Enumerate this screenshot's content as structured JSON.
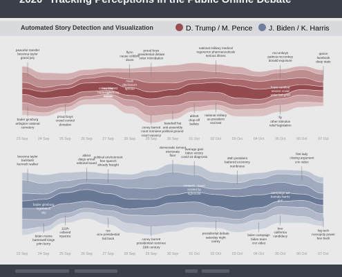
{
  "header": {
    "year": "2020",
    "title": "Tracking Perceptions in the Public Online Debate",
    "subtitle": "Automated Story Detection and Visualization"
  },
  "colors": {
    "header_bg": "#3a3f49",
    "subbar_bg": "#d9dadd",
    "trump": "#9b4f53",
    "biden": "#6f7e9c"
  },
  "chart_data": [
    {
      "type": "area",
      "name": "Trump / Pence stream",
      "legend": "D. Trump / M. Pence",
      "color": "#9b4f53",
      "x": [
        "23 Sep",
        "24 Sep",
        "25 Sep",
        "26 Sep",
        "27 Sep",
        "28 Sep",
        "29 Sep",
        "30 Sep",
        "01 Oct",
        "02 Oct",
        "03 Oct",
        "04 Oct",
        "05 Oct",
        "06 Oct",
        "07 Oct"
      ],
      "total": [
        3.8,
        3.4,
        3.0,
        2.8,
        2.9,
        3.6,
        4.4,
        4.2,
        3.8,
        3.6,
        4.0,
        3.6,
        3.4,
        3.2,
        2.8
      ],
      "annotations": [
        {
          "date": "23 Sep",
          "pos": "top",
          "lines": [
            "peaceful transfer",
            "breonna taylor",
            "grand jury"
          ]
        },
        {
          "date": "23 Sep",
          "pos": "bottom",
          "lines": [
            "bader ginsburg",
            "arlington national",
            "cemetery"
          ]
        },
        {
          "date": "25 Sep",
          "pos": "bottom",
          "lines": [
            "proud boys",
            "crowd control",
            "donation"
          ]
        },
        {
          "date": "27 Sep",
          "pos": "inner",
          "lines": [
            "coney barrett",
            "bader ginsburg",
            "statue"
          ]
        },
        {
          "date": "27 Sep",
          "pos": "inner",
          "lines": [
            "tuesday",
            "night",
            "debate"
          ]
        },
        {
          "date": "28 Sep",
          "pos": "top",
          "lines": [
            "flynn",
            "cause célèbre",
            "doors"
          ]
        },
        {
          "date": "28 Sep",
          "pos": "inner",
          "lines": [
            "mask",
            "disclosure",
            "spread"
          ]
        },
        {
          "date": "29 Sep",
          "pos": "bottom",
          "lines": [
            "coney barrett",
            "court nominee",
            "court vacancy"
          ]
        },
        {
          "date": "29 Sep",
          "pos": "top",
          "lines": [
            "proud boys",
            "presidential debate",
            "voter intimidation"
          ]
        },
        {
          "date": "30 Sep",
          "pos": "bottom",
          "lines": [
            "baseball hat",
            "anti-assembly",
            "political ground"
          ]
        },
        {
          "date": "01 Oct",
          "pos": "bottom",
          "lines": [
            "abbott",
            "drop-off",
            "ballots"
          ]
        },
        {
          "date": "02 Oct",
          "pos": "top",
          "lines": [
            "national military medical",
            "regeneron pharmaceuticals",
            "serious illness"
          ]
        },
        {
          "date": "02 Oct",
          "pos": "bottom",
          "lines": [
            "national military",
            "as president",
            "real test"
          ]
        },
        {
          "date": "05 Oct",
          "pos": "top",
          "lines": [
            "mcconkeys",
            "patricia mcconkey",
            "donald exposure"
          ]
        },
        {
          "date": "05 Oct",
          "pos": "inner",
          "lines": [
            "hope carolina",
            "severe covid",
            "voter-led grief"
          ]
        },
        {
          "date": "05 Oct",
          "pos": "bottom",
          "lines": [
            "fly",
            "other stimulus",
            "relief legislation"
          ]
        },
        {
          "date": "07 Oct",
          "pos": "top",
          "lines": [
            "qanon",
            "facebook",
            "deep state"
          ]
        }
      ]
    },
    {
      "type": "area",
      "name": "Biden / Harris stream",
      "legend": "J. Biden / K. Harris",
      "color": "#6f7e9c",
      "x": [
        "23 Sep",
        "24 Sep",
        "25 Sep",
        "26 Sep",
        "27 Sep",
        "28 Sep",
        "29 Sep",
        "30 Sep",
        "01 Oct",
        "02 Oct",
        "03 Oct",
        "04 Oct",
        "05 Oct",
        "06 Oct",
        "07 Oct"
      ],
      "total": [
        4.6,
        4.2,
        3.8,
        3.6,
        3.9,
        4.4,
        4.8,
        5.0,
        4.6,
        4.2,
        4.4,
        4.3,
        4.0,
        3.9,
        3.6
      ],
      "annotations": [
        {
          "date": "23 Sep",
          "pos": "top",
          "lines": [
            "breonna taylor",
            "backlash",
            "kenneth walker"
          ]
        },
        {
          "date": "24 Sep",
          "pos": "inner",
          "lines": [
            "bader ginsburg",
            "legislation",
            "city"
          ]
        },
        {
          "date": "24 Sep",
          "pos": "bottom",
          "lines": [
            "biden moms",
            "barterwell kings",
            "john kerry"
          ]
        },
        {
          "date": "25 Sep",
          "pos": "bottom",
          "lines": [
            "111th",
            "collared",
            "injustice"
          ]
        },
        {
          "date": "26 Sep",
          "pos": "top",
          "lines": [
            "atkins",
            "diego armor",
            "editorial board"
          ]
        },
        {
          "date": "27 Sep",
          "pos": "bottom",
          "lines": [
            "rye",
            "vice presidential",
            "bid back"
          ]
        },
        {
          "date": "27 Sep",
          "pos": "top",
          "lines": [
            "political environment",
            "free speech",
            "already fraught"
          ]
        },
        {
          "date": "29 Sep",
          "pos": "bottom",
          "lines": [
            "coney barrett",
            "presidential nominee",
            "19th century"
          ]
        },
        {
          "date": "30 Sep",
          "pos": "top",
          "lines": [
            "democratic turnout",
            "electorate",
            "floor"
          ]
        },
        {
          "date": "01 Oct",
          "pos": "inner",
          "lines": [
            "consent - leave",
            "scaled by",
            "rightmost"
          ]
        },
        {
          "date": "01 Oct",
          "pos": "top",
          "lines": [
            "average gain",
            "biden victory",
            "covid-19 diagnosis"
          ]
        },
        {
          "date": "02 Oct",
          "pos": "bottom",
          "lines": [
            "presidential debate",
            "saturday night",
            "carrey"
          ]
        },
        {
          "date": "03 Oct",
          "pos": "top",
          "lines": [
            "45th president",
            "battered economy",
            "numbness"
          ]
        },
        {
          "date": "04 Oct",
          "pos": "bottom",
          "lines": [
            "biden campaign",
            "biden team",
            "cnn video"
          ]
        },
        {
          "date": "05 Oct",
          "pos": "inner",
          "lines": [
            "campaign ad",
            "kamala harris",
            "gun"
          ]
        },
        {
          "date": "05 Oct",
          "pos": "bottom",
          "lines": [
            "bee",
            "california",
            "candidacy"
          ]
        },
        {
          "date": "06 Oct",
          "pos": "top",
          "lines": [
            "first lady",
            "closing argument",
            "cnn video"
          ]
        },
        {
          "date": "07 Oct",
          "pos": "bottom",
          "lines": [
            "big tech",
            "monopoly power",
            "bee back"
          ]
        }
      ]
    }
  ]
}
